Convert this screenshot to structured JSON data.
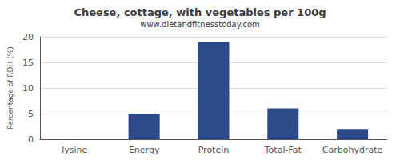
{
  "chart_data": {
    "type": "bar",
    "title": "Cheese, cottage, with vegetables per 100g",
    "subtitle": "www.dietandfitnesstoday.com",
    "categories": [
      "lysine",
      "Energy",
      "Protein",
      "Total-Fat",
      "Carbohydrate"
    ],
    "values": [
      0,
      5,
      19,
      6,
      2
    ],
    "color": "#2d4a8a",
    "ylabel": "Percentage of RDH (%)",
    "ylim": [
      0,
      20
    ],
    "yticks": [
      0,
      5,
      10,
      15,
      20
    ],
    "grid": true
  }
}
